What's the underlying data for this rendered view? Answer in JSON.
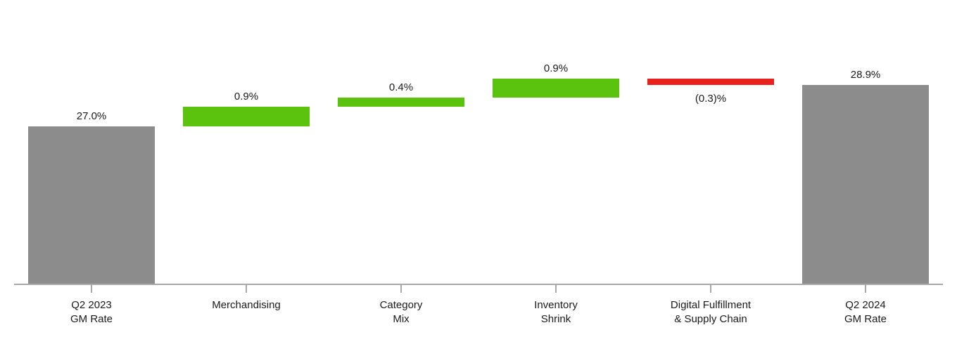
{
  "chart_data": {
    "type": "waterfall",
    "title": "",
    "xlabel": "",
    "ylabel": "",
    "unit": "%",
    "grid": false,
    "legend": false,
    "ylim": [
      19.7,
      32.8
    ],
    "bars": [
      {
        "name": "Q2 2023 GM Rate",
        "category_lines": [
          "Q2 2023",
          "GM Rate"
        ],
        "kind": "total",
        "value": 27.0,
        "label": "27.0%",
        "label_position": "above"
      },
      {
        "name": "Merchandising",
        "category_lines": [
          "Merchandising"
        ],
        "kind": "increase",
        "value": 0.9,
        "label": "0.9%",
        "label_position": "above"
      },
      {
        "name": "Category Mix",
        "category_lines": [
          "Category",
          "Mix"
        ],
        "kind": "increase",
        "value": 0.4,
        "label": "0.4%",
        "label_position": "above"
      },
      {
        "name": "Inventory Shrink",
        "category_lines": [
          "Inventory",
          "Shrink"
        ],
        "kind": "increase",
        "value": 0.9,
        "label": "0.9%",
        "label_position": "above"
      },
      {
        "name": "Digital Fulfillment & Supply Chain",
        "category_lines": [
          "Digital Fulfillment",
          "& Supply Chain"
        ],
        "kind": "decrease",
        "value": -0.3,
        "label": "(0.3)%",
        "label_position": "below"
      },
      {
        "name": "Q2 2024 GM Rate",
        "category_lines": [
          "Q2 2024",
          "GM Rate"
        ],
        "kind": "total",
        "value": 28.9,
        "label": "28.9%",
        "label_position": "above"
      }
    ],
    "cumulative": [
      27.0,
      27.9,
      28.3,
      29.2,
      28.9,
      28.9
    ],
    "colors": {
      "total_bar": "#8C8C8C",
      "increase_bar": "#5BC20E",
      "decrease_bar": "#E8211D",
      "axis_line": "#A8A8A8",
      "label_text": "#1A1A1A"
    }
  }
}
